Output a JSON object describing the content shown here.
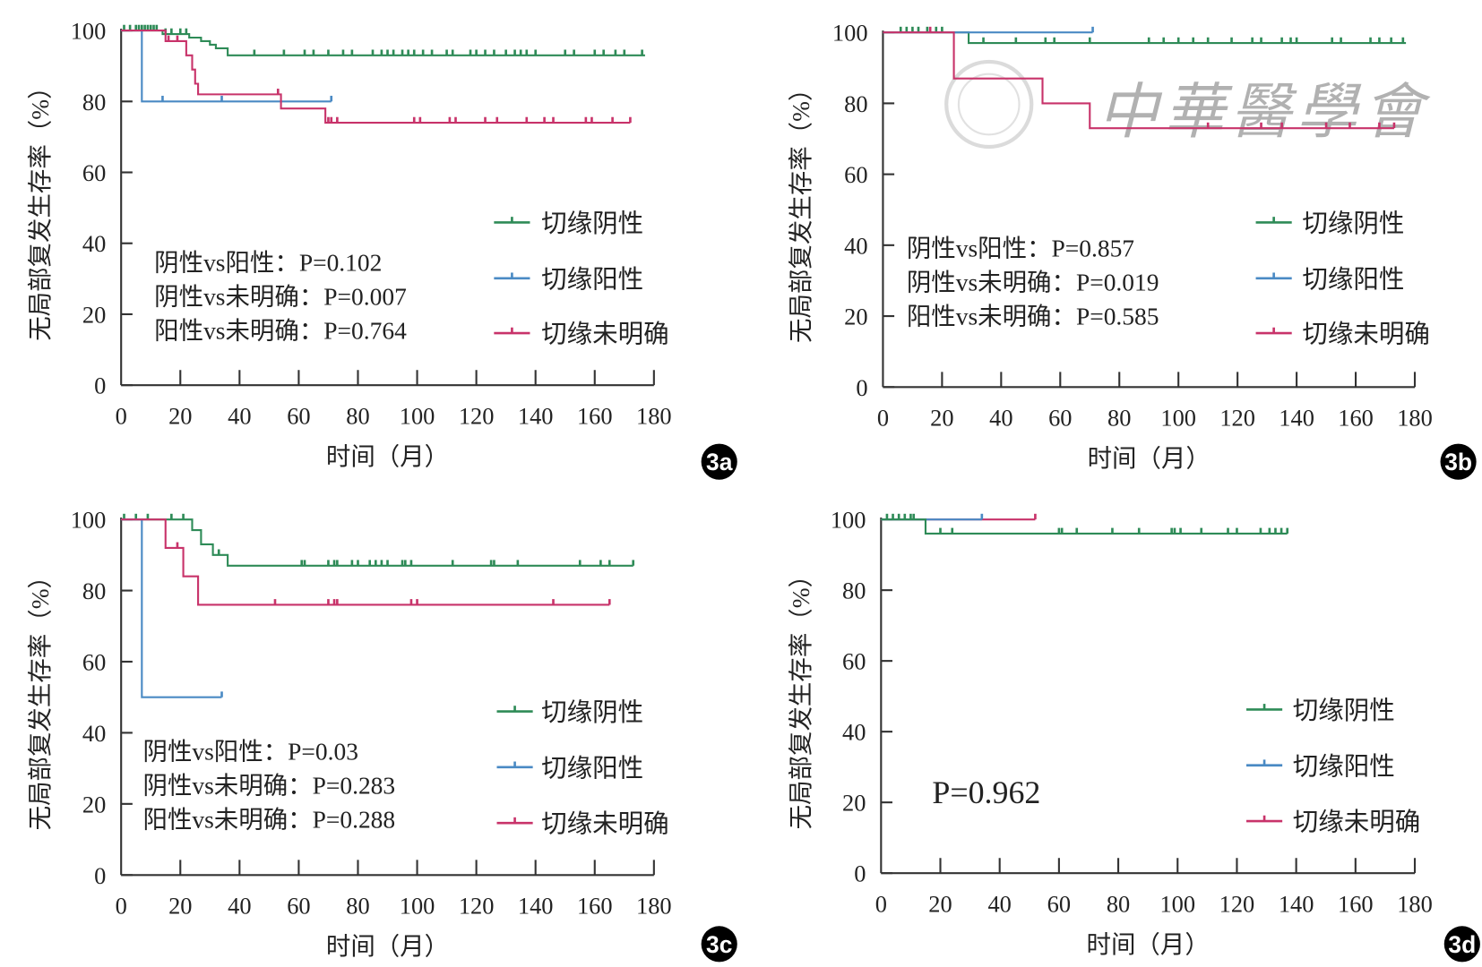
{
  "colors": {
    "negative": "#2e8b57",
    "positive": "#4a8ac4",
    "unclear": "#c8336a",
    "axis": "#333333"
  },
  "watermark": {
    "text": "中華醫學會"
  },
  "chart_data": [
    {
      "type": "line",
      "panel": "3a",
      "xlabel": "时间（月）",
      "ylabel": "无局部复发生存率（%）",
      "xlim": [
        0,
        180
      ],
      "ylim": [
        0,
        100
      ],
      "xticks": [
        "0",
        "20",
        "40",
        "60",
        "80",
        "100",
        "120",
        "140",
        "160",
        "180"
      ],
      "yticks": [
        "0",
        "20",
        "40",
        "60",
        "80",
        "100"
      ],
      "legend": [
        "切缘阴性",
        "切缘阳性",
        "切缘未明确"
      ],
      "pvalues": [
        "阴性vs阳性：P=0.102",
        "阴性vs未明确：P=0.007",
        "阳性vs未明确：P=0.764"
      ],
      "series": [
        {
          "name": "切缘阴性",
          "steps": [
            [
              0,
              100
            ],
            [
              14,
              99
            ],
            [
              23,
              98
            ],
            [
              27,
              97
            ],
            [
              30,
              96
            ],
            [
              32,
              95
            ],
            [
              36,
              93
            ]
          ],
          "end": 177,
          "censors": [
            1,
            3,
            5,
            6,
            7,
            8,
            9,
            10,
            11,
            12,
            15,
            17,
            20,
            22,
            45,
            55,
            62,
            65,
            70,
            75,
            78,
            85,
            88,
            90,
            92,
            95,
            97,
            99,
            102,
            105,
            110,
            112,
            118,
            120,
            123,
            126,
            130,
            133,
            135,
            137,
            140,
            150,
            153,
            160,
            163,
            167,
            170,
            176
          ]
        },
        {
          "name": "切缘阳性",
          "steps": [
            [
              0,
              100
            ],
            [
              7,
              80
            ]
          ],
          "end": 71,
          "censors": [
            14,
            34,
            71
          ]
        },
        {
          "name": "切缘未明确",
          "steps": [
            [
              15,
              97
            ],
            [
              22,
              93
            ],
            [
              24,
              89
            ],
            [
              25,
              85
            ],
            [
              26,
              82
            ],
            [
              54,
              78
            ],
            [
              69,
              74
            ]
          ],
          "start": [
            [
              0,
              100
            ]
          ],
          "end": 172,
          "censors": [
            16,
            19,
            53,
            70,
            71,
            73,
            99,
            101,
            111,
            113,
            123,
            127,
            137,
            143,
            146,
            157,
            159,
            166,
            172
          ]
        }
      ]
    },
    {
      "type": "line",
      "panel": "3b",
      "xlabel": "时间（月）",
      "ylabel": "无局部复发生存率（%）",
      "xlim": [
        0,
        180
      ],
      "ylim": [
        0,
        100
      ],
      "xticks": [
        "0",
        "20",
        "40",
        "60",
        "80",
        "100",
        "120",
        "140",
        "160",
        "180"
      ],
      "yticks": [
        "0",
        "20",
        "40",
        "60",
        "80",
        "100"
      ],
      "legend": [
        "切缘阴性",
        "切缘阳性",
        "切缘未明确"
      ],
      "pvalues": [
        "阴性vs阳性：P=0.857",
        "阴性vs未明确：P=0.019",
        "阳性vs未明确：P=0.585"
      ],
      "series": [
        {
          "name": "切缘阴性",
          "steps": [
            [
              0,
              100
            ],
            [
              29,
              97
            ]
          ],
          "end": 177,
          "censors": [
            6,
            8,
            10,
            12,
            15,
            18,
            20,
            34,
            45,
            55,
            58,
            70,
            90,
            95,
            100,
            105,
            110,
            118,
            125,
            128,
            135,
            138,
            140,
            152,
            155,
            165,
            168,
            172,
            176
          ]
        },
        {
          "name": "切缘阳性",
          "steps": [
            [
              0,
              100
            ]
          ],
          "end": 71,
          "censors": [
            71
          ]
        },
        {
          "name": "切缘未明确",
          "steps": [
            [
              0,
              100
            ],
            [
              24,
              87
            ],
            [
              54,
              80
            ],
            [
              70,
              73
            ]
          ],
          "end": 173,
          "censors": [
            16,
            110,
            128,
            135,
            150,
            158,
            168,
            173
          ]
        }
      ]
    },
    {
      "type": "line",
      "panel": "3c",
      "xlabel": "时间（月）",
      "ylabel": "无局部复发生存率（%）",
      "xlim": [
        0,
        180
      ],
      "ylim": [
        0,
        100
      ],
      "xticks": [
        "0",
        "20",
        "40",
        "60",
        "80",
        "100",
        "120",
        "140",
        "160",
        "180"
      ],
      "yticks": [
        "0",
        "20",
        "40",
        "60",
        "80",
        "100"
      ],
      "legend": [
        "切缘阴性",
        "切缘阳性",
        "切缘未明确"
      ],
      "pvalues": [
        "阴性vs阳性：P=0.03",
        "阴性vs未明确：P=0.283",
        "阳性vs未明确：P=0.288"
      ],
      "series": [
        {
          "name": "切缘阴性",
          "steps": [
            [
              0,
              100
            ],
            [
              24,
              97
            ],
            [
              27,
              93
            ],
            [
              31,
              90
            ],
            [
              36,
              87
            ]
          ],
          "end": 173,
          "censors": [
            1,
            5,
            9,
            17,
            21,
            33,
            61,
            62,
            70,
            72,
            73,
            78,
            80,
            84,
            86,
            88,
            90,
            95,
            96,
            98,
            112,
            125,
            126,
            134,
            155,
            162,
            165,
            173
          ]
        },
        {
          "name": "切缘阳性",
          "steps": [
            [
              0,
              100
            ],
            [
              7,
              50
            ]
          ],
          "end": 34,
          "censors": [
            34
          ]
        },
        {
          "name": "切缘未明确",
          "steps": [
            [
              15,
              92
            ],
            [
              21,
              84
            ],
            [
              26,
              76
            ]
          ],
          "start": [
            [
              0,
              100
            ]
          ],
          "end": 165,
          "censors": [
            19,
            52,
            70,
            72,
            73,
            98,
            100,
            146,
            165
          ]
        }
      ]
    },
    {
      "type": "line",
      "panel": "3d",
      "xlabel": "时间（月）",
      "ylabel": "无局部复发生存率（%）",
      "xlim": [
        0,
        180
      ],
      "ylim": [
        0,
        100
      ],
      "xticks": [
        "0",
        "20",
        "40",
        "60",
        "80",
        "100",
        "120",
        "140",
        "160",
        "180"
      ],
      "yticks": [
        "0",
        "20",
        "40",
        "60",
        "80",
        "100"
      ],
      "legend": [
        "切缘阴性",
        "切缘阳性",
        "切缘未明确"
      ],
      "pvalues": [
        "P=0.962"
      ],
      "series": [
        {
          "name": "切缘未明确",
          "steps": [
            [
              0,
              100
            ]
          ],
          "end": 52,
          "censors": [
            52
          ]
        },
        {
          "name": "切缘阳性",
          "steps": [
            [
              0,
              100
            ]
          ],
          "end": 34,
          "censors": [
            34
          ]
        },
        {
          "name": "切缘阴性",
          "steps": [
            [
              0,
              100
            ],
            [
              15,
              96
            ]
          ],
          "end": 137,
          "censors": [
            2,
            4,
            6,
            8,
            10,
            11,
            20,
            24,
            60,
            61,
            66,
            78,
            87,
            98,
            99,
            101,
            108,
            117,
            120,
            128,
            131,
            133,
            135,
            137
          ]
        }
      ]
    }
  ]
}
